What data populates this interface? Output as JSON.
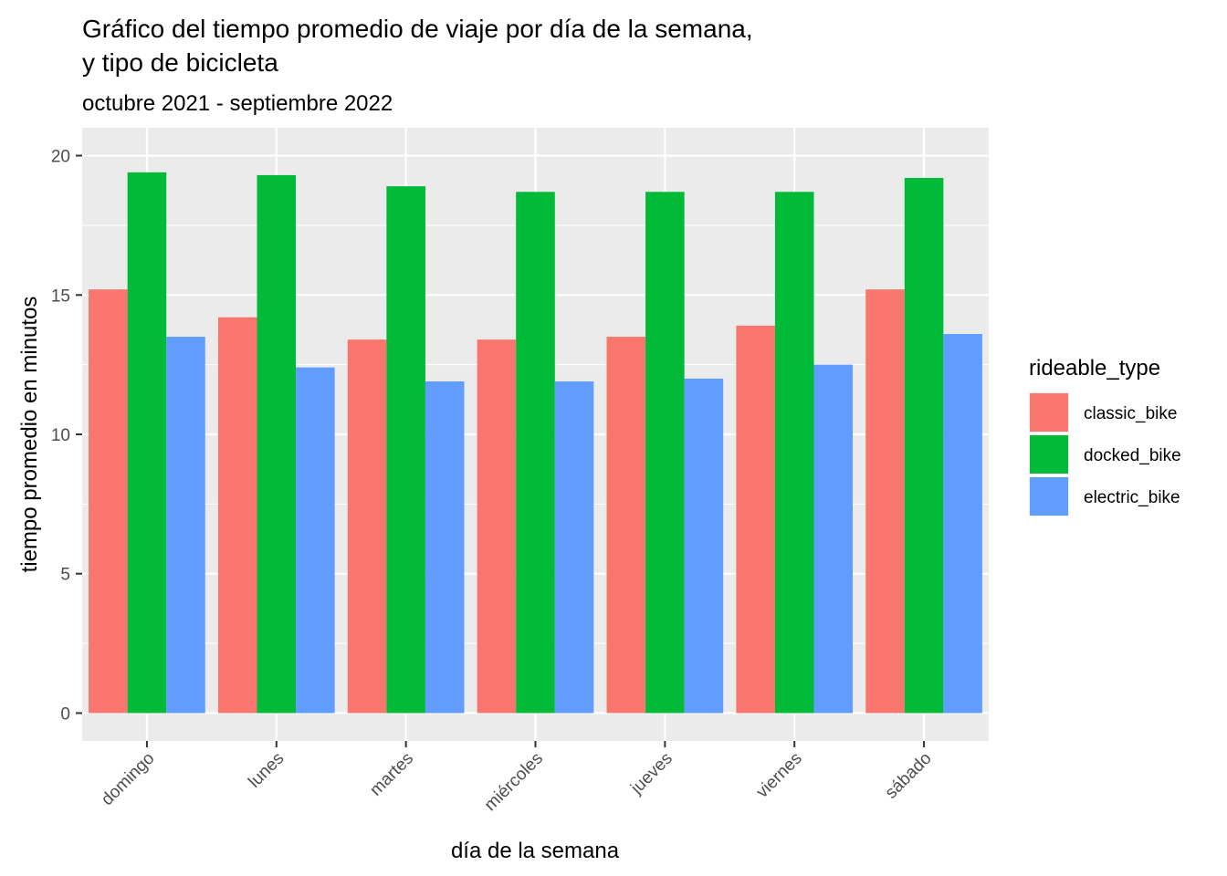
{
  "chart_data": {
    "type": "bar",
    "title_line1": "Gráfico del tiempo promedio de viaje por día de la semana,",
    "title_line2": "y tipo de bicicleta",
    "subtitle": "octubre 2021 - septiembre 2022",
    "xlabel": "día de la semana",
    "ylabel": "tiempo promedio en minutos",
    "categories": [
      "domingo",
      "lunes",
      "martes",
      "miércoles",
      "jueves",
      "viernes",
      "sábado"
    ],
    "ylim": [
      -1,
      21
    ],
    "yticks": [
      0,
      5,
      10,
      15,
      20
    ],
    "series": [
      {
        "name": "classic_bike",
        "color": "#F8766D",
        "values": [
          15.2,
          14.2,
          13.4,
          13.4,
          13.5,
          13.9,
          15.2
        ]
      },
      {
        "name": "docked_bike",
        "color": "#00BA38",
        "values": [
          19.4,
          19.3,
          18.9,
          18.7,
          18.7,
          18.7,
          19.2
        ]
      },
      {
        "name": "electric_bike",
        "color": "#619CFF",
        "values": [
          13.5,
          12.4,
          11.9,
          11.9,
          12.0,
          12.5,
          13.6
        ]
      }
    ],
    "legend_title": "rideable_type",
    "legend_position": "right",
    "grid": true,
    "panel_background": "#EBEBEB",
    "grid_color": "#FFFFFF",
    "tick_label_rotation_deg": -45
  }
}
